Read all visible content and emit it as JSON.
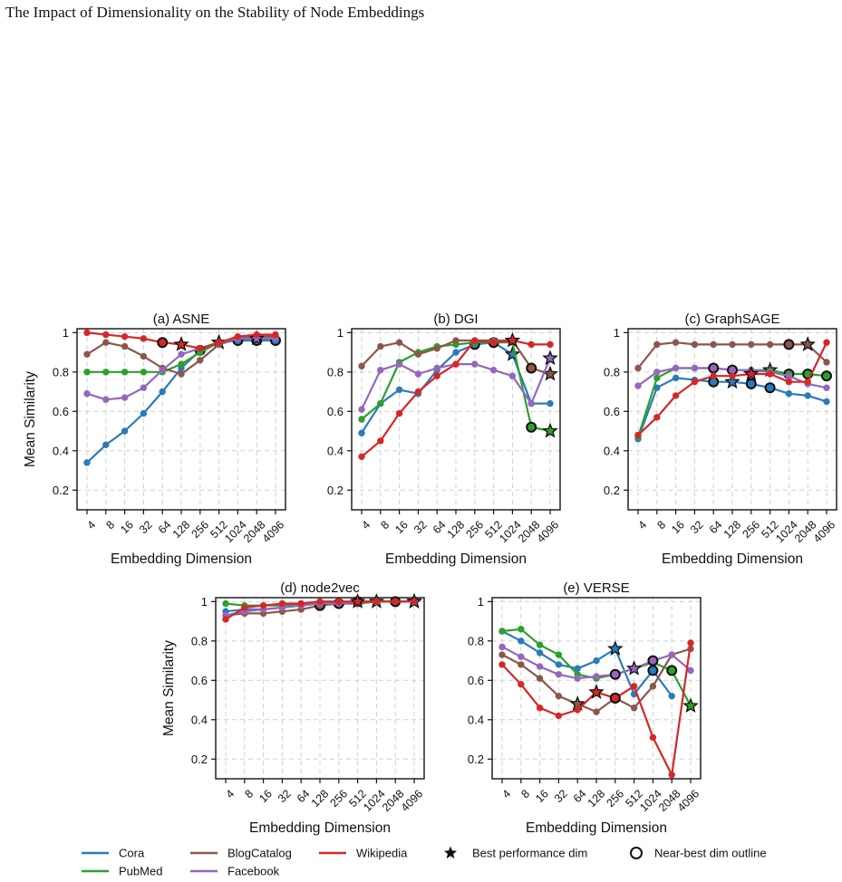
{
  "page_title": "The Impact of Dimensionality on the Stability of Node Embeddings",
  "ylabel": "Mean Similarity",
  "xlabel": "Embedding Dimension",
  "x_ticks": [
    "4",
    "8",
    "16",
    "32",
    "64",
    "128",
    "256",
    "512",
    "1024",
    "2048",
    "4096"
  ],
  "y_ticks": [
    "0.2",
    "0.4",
    "0.6",
    "0.8",
    "1"
  ],
  "colors": {
    "Cora": "#2b7bb9",
    "PubMed": "#2ca02c",
    "BlogCatalog": "#8c564b",
    "Wikipedia": "#d62728",
    "Facebook": "#9467bd"
  },
  "legend": {
    "datasets": [
      "Cora",
      "PubMed",
      "BlogCatalog",
      "Facebook",
      "Wikipedia"
    ],
    "best_label": "Best performance dim",
    "near_label": "Near-best dim outline"
  },
  "chart_data": [
    {
      "type": "line",
      "title": "(a) ASNE",
      "ylim": [
        0.1,
        1.02
      ],
      "x": [
        4,
        8,
        16,
        32,
        64,
        128,
        256,
        512,
        1024,
        2048,
        4096
      ],
      "series": [
        {
          "name": "Cora",
          "values": [
            0.34,
            0.43,
            0.5,
            0.59,
            0.7,
            0.82,
            0.91,
            0.95,
            0.96,
            0.96,
            0.96
          ],
          "best": 7,
          "near": [
            6,
            8,
            9,
            10
          ]
        },
        {
          "name": "PubMed",
          "values": [
            0.8,
            0.8,
            0.8,
            0.8,
            0.8,
            0.84,
            0.9,
            0.95,
            0.97,
            0.98,
            0.98
          ],
          "best": 7,
          "near": []
        },
        {
          "name": "BlogCatalog",
          "values": [
            0.89,
            0.95,
            0.93,
            0.88,
            0.82,
            0.79,
            0.86,
            0.94,
            0.97,
            0.98,
            0.98
          ],
          "best": null,
          "near": []
        },
        {
          "name": "Facebook",
          "values": [
            0.69,
            0.66,
            0.67,
            0.72,
            0.81,
            0.89,
            0.92,
            0.95,
            0.97,
            0.97,
            0.97
          ],
          "best": 9,
          "near": []
        },
        {
          "name": "Wikipedia",
          "values": [
            1.0,
            0.99,
            0.98,
            0.97,
            0.95,
            0.94,
            0.92,
            0.95,
            0.98,
            0.99,
            0.99
          ],
          "best": 5,
          "near": [
            4
          ]
        }
      ]
    },
    {
      "type": "line",
      "title": "(b) DGI",
      "ylim": [
        0.1,
        1.02
      ],
      "x": [
        4,
        8,
        16,
        32,
        64,
        128,
        256,
        512,
        1024,
        2048,
        4096
      ],
      "series": [
        {
          "name": "Cora",
          "values": [
            0.49,
            0.64,
            0.71,
            0.69,
            0.81,
            0.9,
            0.94,
            0.95,
            0.89,
            0.64,
            0.64
          ],
          "best": 8,
          "near": [
            6,
            7
          ]
        },
        {
          "name": "PubMed",
          "values": [
            0.56,
            0.64,
            0.85,
            0.9,
            0.93,
            0.94,
            0.95,
            0.95,
            0.95,
            0.52,
            0.5
          ],
          "best": 10,
          "near": [
            9
          ]
        },
        {
          "name": "BlogCatalog",
          "values": [
            0.83,
            0.93,
            0.95,
            0.89,
            0.92,
            0.96,
            0.96,
            0.96,
            0.96,
            0.82,
            0.79
          ],
          "best": 10,
          "near": [
            9
          ]
        },
        {
          "name": "Facebook",
          "values": [
            0.61,
            0.81,
            0.84,
            0.79,
            0.82,
            0.84,
            0.84,
            0.81,
            0.78,
            0.64,
            0.87
          ],
          "best": 10,
          "near": []
        },
        {
          "name": "Wikipedia",
          "values": [
            0.37,
            0.45,
            0.59,
            0.7,
            0.78,
            0.84,
            0.96,
            0.95,
            0.96,
            0.94,
            0.94
          ],
          "best": 8,
          "near": []
        }
      ]
    },
    {
      "type": "line",
      "title": "(c) GraphSAGE",
      "ylim": [
        0.1,
        1.02
      ],
      "x": [
        4,
        8,
        16,
        32,
        64,
        128,
        256,
        512,
        1024,
        2048,
        4096
      ],
      "series": [
        {
          "name": "Cora",
          "values": [
            0.46,
            0.72,
            0.77,
            0.76,
            0.75,
            0.75,
            0.74,
            0.72,
            0.69,
            0.68,
            0.65
          ],
          "best": 5,
          "near": [
            4,
            6,
            7
          ]
        },
        {
          "name": "PubMed",
          "values": [
            0.47,
            0.77,
            0.82,
            0.82,
            0.82,
            0.81,
            0.81,
            0.81,
            0.79,
            0.79,
            0.78
          ],
          "best": 7,
          "near": [
            8,
            9,
            10
          ]
        },
        {
          "name": "BlogCatalog",
          "values": [
            0.82,
            0.94,
            0.95,
            0.94,
            0.94,
            0.94,
            0.94,
            0.94,
            0.94,
            0.94,
            0.85
          ],
          "best": 9,
          "near": [
            8
          ]
        },
        {
          "name": "Facebook",
          "values": [
            0.73,
            0.8,
            0.82,
            0.82,
            0.82,
            0.81,
            0.81,
            0.8,
            0.78,
            0.74,
            0.72
          ],
          "best": null,
          "near": [
            4,
            5
          ]
        },
        {
          "name": "Wikipedia",
          "values": [
            0.48,
            0.57,
            0.68,
            0.75,
            0.78,
            0.78,
            0.79,
            0.79,
            0.75,
            0.75,
            0.95
          ],
          "best": 6,
          "near": [
            6
          ]
        }
      ]
    },
    {
      "type": "line",
      "title": "(d) node2vec",
      "ylim": [
        0.1,
        1.02
      ],
      "x": [
        4,
        8,
        16,
        32,
        64,
        128,
        256,
        512,
        1024,
        2048,
        4096
      ],
      "series": [
        {
          "name": "Cora",
          "values": [
            0.95,
            0.96,
            0.96,
            0.97,
            0.98,
            0.99,
            0.99,
            1.0,
            1.0,
            1.0,
            1.0
          ],
          "best": 10,
          "near": []
        },
        {
          "name": "PubMed",
          "values": [
            0.99,
            0.98,
            0.98,
            0.98,
            0.99,
            1.0,
            1.0,
            1.0,
            1.0,
            1.0,
            1.0
          ],
          "best": 8,
          "near": [
            7,
            8,
            9
          ]
        },
        {
          "name": "BlogCatalog",
          "values": [
            0.93,
            0.94,
            0.94,
            0.95,
            0.96,
            0.98,
            0.99,
            0.99,
            1.0,
            1.0,
            1.0
          ],
          "best": 10,
          "near": [
            5,
            6
          ]
        },
        {
          "name": "Facebook",
          "values": [
            0.93,
            0.95,
            0.96,
            0.97,
            0.98,
            0.99,
            0.99,
            1.0,
            1.0,
            1.0,
            1.0
          ],
          "best": 10,
          "near": []
        },
        {
          "name": "Wikipedia",
          "values": [
            0.91,
            0.97,
            0.98,
            0.99,
            0.99,
            1.0,
            1.0,
            1.0,
            1.0,
            1.0,
            1.0
          ],
          "best": 7,
          "near": []
        }
      ]
    },
    {
      "type": "line",
      "title": "(e) VERSE",
      "ylim": [
        0.1,
        1.02
      ],
      "x": [
        4,
        8,
        16,
        32,
        64,
        128,
        256,
        512,
        1024,
        2048,
        4096
      ],
      "series": [
        {
          "name": "Cora",
          "values": [
            0.85,
            0.8,
            0.74,
            0.68,
            0.66,
            0.7,
            0.76,
            0.53,
            0.65,
            0.52,
            null
          ],
          "best": 6,
          "near": [
            8
          ]
        },
        {
          "name": "PubMed",
          "values": [
            0.85,
            0.86,
            0.78,
            0.73,
            0.63,
            0.61,
            0.63,
            0.66,
            0.69,
            0.65,
            0.47
          ],
          "best": 10,
          "near": [
            9
          ]
        },
        {
          "name": "BlogCatalog",
          "values": [
            0.73,
            0.68,
            0.61,
            0.52,
            0.48,
            0.44,
            0.51,
            0.46,
            0.57,
            0.73,
            0.76
          ],
          "best": 4,
          "near": [
            6
          ]
        },
        {
          "name": "Facebook",
          "values": [
            0.77,
            0.72,
            0.67,
            0.63,
            0.61,
            0.62,
            0.63,
            0.66,
            0.7,
            0.73,
            0.65
          ],
          "best": 7,
          "near": [
            6,
            8
          ]
        },
        {
          "name": "Wikipedia",
          "values": [
            0.68,
            0.58,
            0.46,
            0.42,
            0.45,
            0.54,
            0.51,
            0.57,
            0.31,
            0.12,
            0.79
          ],
          "best": 5,
          "near": [
            6
          ]
        }
      ]
    }
  ]
}
